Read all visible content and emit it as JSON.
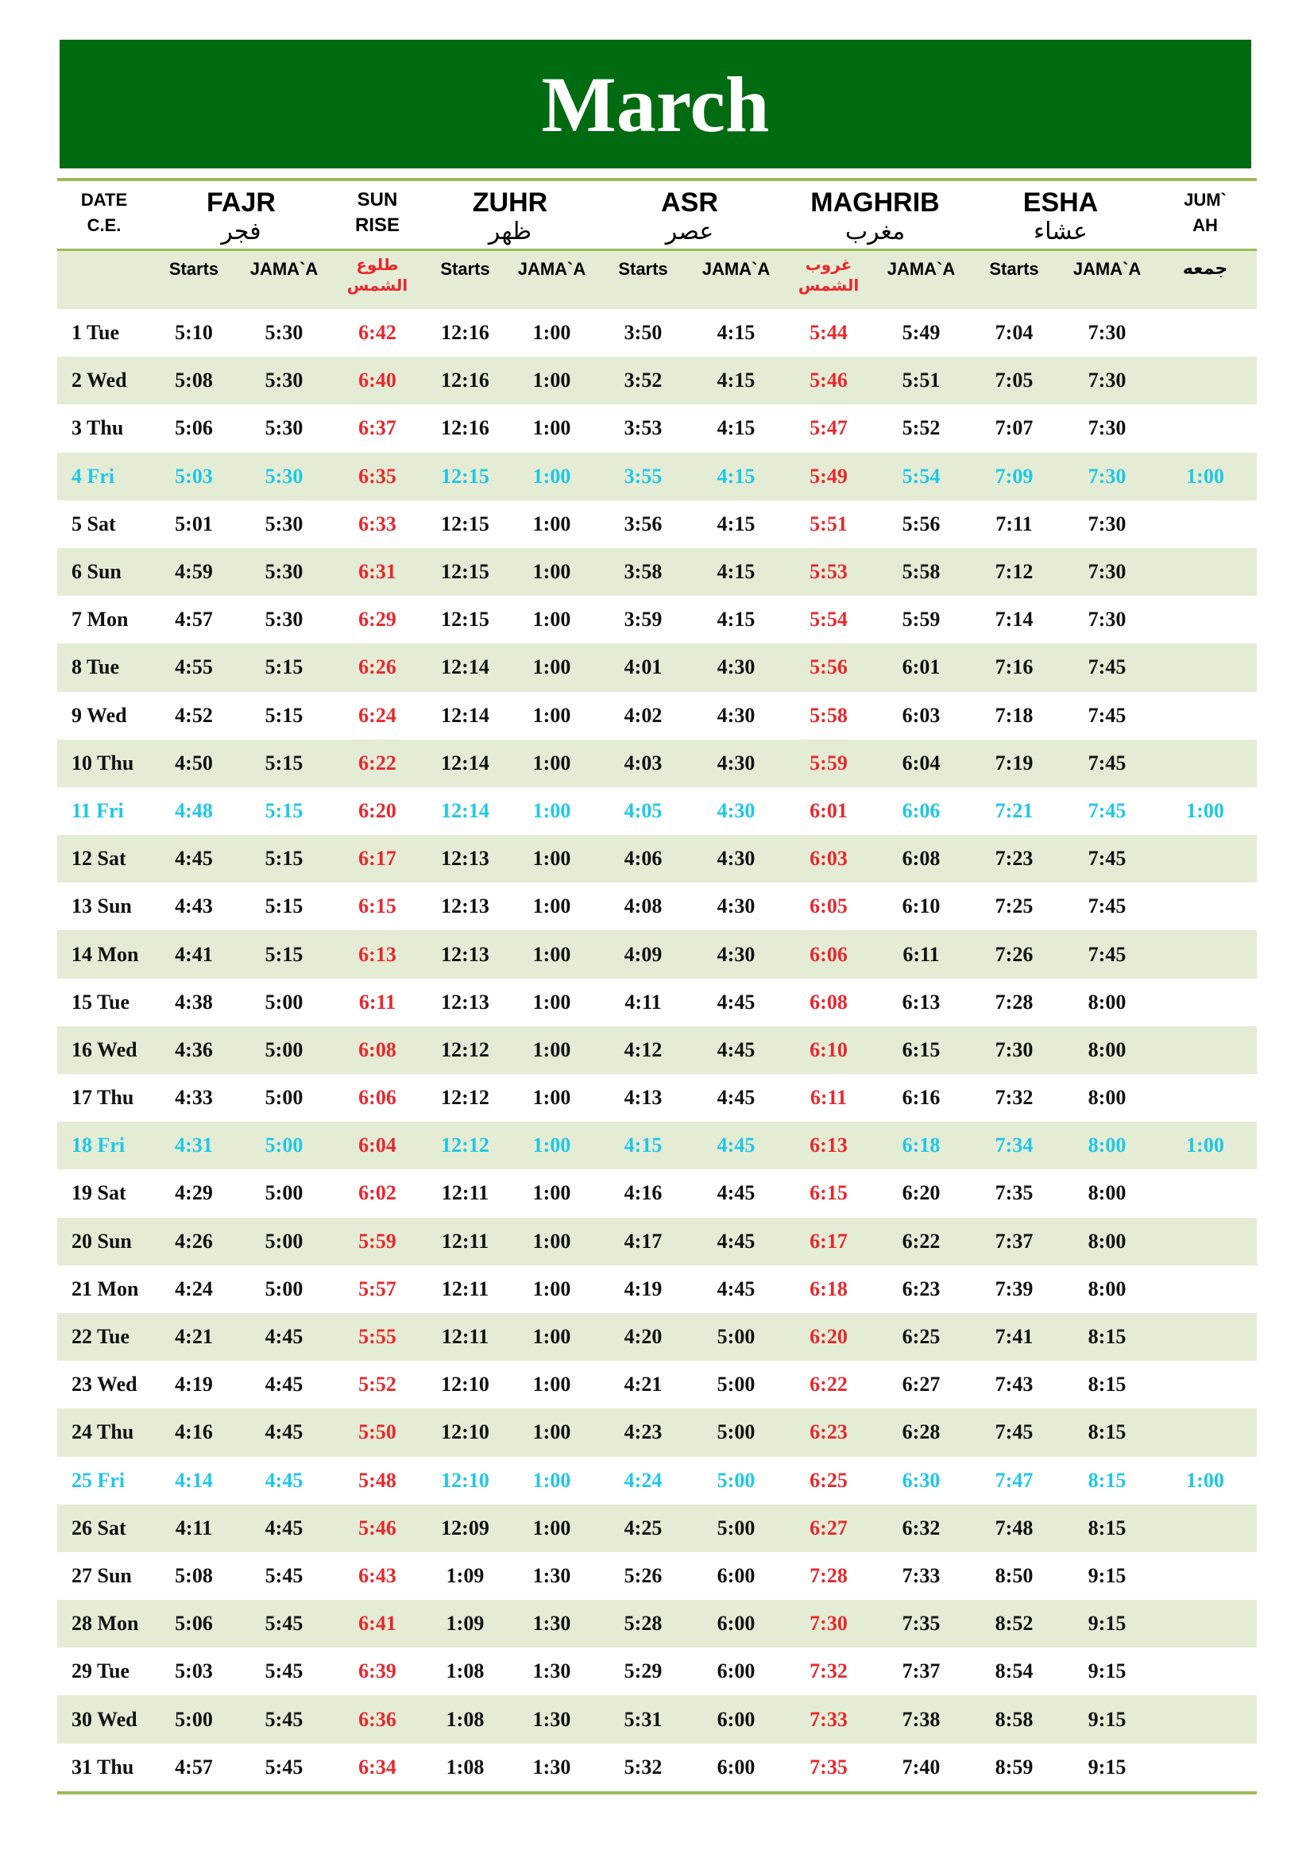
{
  "title": "March",
  "header": {
    "date": [
      "DATE",
      "C.E."
    ],
    "fajr": {
      "en": "FAJR",
      "ar": "فجر"
    },
    "sunrise": [
      "SUN",
      "RISE"
    ],
    "zuhr": {
      "en": "ZUHR",
      "ar": "ظهر"
    },
    "asr": {
      "en": "ASR",
      "ar": "عصر"
    },
    "maghrib": {
      "en": "MAGHRIB",
      "ar": "مغرب"
    },
    "esha": {
      "en": "ESHA",
      "ar": "عشاء"
    },
    "jumah": [
      "JUM`",
      "AH"
    ],
    "sub": {
      "starts": "Starts",
      "jamaa": "JAMA`A",
      "sunrise_ar": "طلوع الشمس",
      "sunset_ar": "غروب الشمس",
      "jumah_ar": "جمعه"
    }
  },
  "colors": {
    "title_bg": "#006b10",
    "sun_times": "#e8282d",
    "friday": "#1ec8e6",
    "alt_row": "#e5ecd5",
    "rule": "#9bbb59"
  },
  "rows": [
    [
      "1 Tue",
      "5:10",
      "5:30",
      "6:42",
      "12:16",
      "1:00",
      "3:50",
      "4:15",
      "5:44",
      "5:49",
      "7:04",
      "7:30",
      ""
    ],
    [
      "2 Wed",
      "5:08",
      "5:30",
      "6:40",
      "12:16",
      "1:00",
      "3:52",
      "4:15",
      "5:46",
      "5:51",
      "7:05",
      "7:30",
      ""
    ],
    [
      "3 Thu",
      "5:06",
      "5:30",
      "6:37",
      "12:16",
      "1:00",
      "3:53",
      "4:15",
      "5:47",
      "5:52",
      "7:07",
      "7:30",
      ""
    ],
    [
      "4 Fri",
      "5:03",
      "5:30",
      "6:35",
      "12:15",
      "1:00",
      "3:55",
      "4:15",
      "5:49",
      "5:54",
      "7:09",
      "7:30",
      "1:00"
    ],
    [
      "5 Sat",
      "5:01",
      "5:30",
      "6:33",
      "12:15",
      "1:00",
      "3:56",
      "4:15",
      "5:51",
      "5:56",
      "7:11",
      "7:30",
      ""
    ],
    [
      "6 Sun",
      "4:59",
      "5:30",
      "6:31",
      "12:15",
      "1:00",
      "3:58",
      "4:15",
      "5:53",
      "5:58",
      "7:12",
      "7:30",
      ""
    ],
    [
      "7 Mon",
      "4:57",
      "5:30",
      "6:29",
      "12:15",
      "1:00",
      "3:59",
      "4:15",
      "5:54",
      "5:59",
      "7:14",
      "7:30",
      ""
    ],
    [
      "8 Tue",
      "4:55",
      "5:15",
      "6:26",
      "12:14",
      "1:00",
      "4:01",
      "4:30",
      "5:56",
      "6:01",
      "7:16",
      "7:45",
      ""
    ],
    [
      "9 Wed",
      "4:52",
      "5:15",
      "6:24",
      "12:14",
      "1:00",
      "4:02",
      "4:30",
      "5:58",
      "6:03",
      "7:18",
      "7:45",
      ""
    ],
    [
      "10 Thu",
      "4:50",
      "5:15",
      "6:22",
      "12:14",
      "1:00",
      "4:03",
      "4:30",
      "5:59",
      "6:04",
      "7:19",
      "7:45",
      ""
    ],
    [
      "11 Fri",
      "4:48",
      "5:15",
      "6:20",
      "12:14",
      "1:00",
      "4:05",
      "4:30",
      "6:01",
      "6:06",
      "7:21",
      "7:45",
      "1:00"
    ],
    [
      "12 Sat",
      "4:45",
      "5:15",
      "6:17",
      "12:13",
      "1:00",
      "4:06",
      "4:30",
      "6:03",
      "6:08",
      "7:23",
      "7:45",
      ""
    ],
    [
      "13 Sun",
      "4:43",
      "5:15",
      "6:15",
      "12:13",
      "1:00",
      "4:08",
      "4:30",
      "6:05",
      "6:10",
      "7:25",
      "7:45",
      ""
    ],
    [
      "14 Mon",
      "4:41",
      "5:15",
      "6:13",
      "12:13",
      "1:00",
      "4:09",
      "4:30",
      "6:06",
      "6:11",
      "7:26",
      "7:45",
      ""
    ],
    [
      "15 Tue",
      "4:38",
      "5:00",
      "6:11",
      "12:13",
      "1:00",
      "4:11",
      "4:45",
      "6:08",
      "6:13",
      "7:28",
      "8:00",
      ""
    ],
    [
      "16 Wed",
      "4:36",
      "5:00",
      "6:08",
      "12:12",
      "1:00",
      "4:12",
      "4:45",
      "6:10",
      "6:15",
      "7:30",
      "8:00",
      ""
    ],
    [
      "17 Thu",
      "4:33",
      "5:00",
      "6:06",
      "12:12",
      "1:00",
      "4:13",
      "4:45",
      "6:11",
      "6:16",
      "7:32",
      "8:00",
      ""
    ],
    [
      "18 Fri",
      "4:31",
      "5:00",
      "6:04",
      "12:12",
      "1:00",
      "4:15",
      "4:45",
      "6:13",
      "6:18",
      "7:34",
      "8:00",
      "1:00"
    ],
    [
      "19 Sat",
      "4:29",
      "5:00",
      "6:02",
      "12:11",
      "1:00",
      "4:16",
      "4:45",
      "6:15",
      "6:20",
      "7:35",
      "8:00",
      ""
    ],
    [
      "20 Sun",
      "4:26",
      "5:00",
      "5:59",
      "12:11",
      "1:00",
      "4:17",
      "4:45",
      "6:17",
      "6:22",
      "7:37",
      "8:00",
      ""
    ],
    [
      "21 Mon",
      "4:24",
      "5:00",
      "5:57",
      "12:11",
      "1:00",
      "4:19",
      "4:45",
      "6:18",
      "6:23",
      "7:39",
      "8:00",
      ""
    ],
    [
      "22 Tue",
      "4:21",
      "4:45",
      "5:55",
      "12:11",
      "1:00",
      "4:20",
      "5:00",
      "6:20",
      "6:25",
      "7:41",
      "8:15",
      ""
    ],
    [
      "23 Wed",
      "4:19",
      "4:45",
      "5:52",
      "12:10",
      "1:00",
      "4:21",
      "5:00",
      "6:22",
      "6:27",
      "7:43",
      "8:15",
      ""
    ],
    [
      "24 Thu",
      "4:16",
      "4:45",
      "5:50",
      "12:10",
      "1:00",
      "4:23",
      "5:00",
      "6:23",
      "6:28",
      "7:45",
      "8:15",
      ""
    ],
    [
      "25 Fri",
      "4:14",
      "4:45",
      "5:48",
      "12:10",
      "1:00",
      "4:24",
      "5:00",
      "6:25",
      "6:30",
      "7:47",
      "8:15",
      "1:00"
    ],
    [
      "26 Sat",
      "4:11",
      "4:45",
      "5:46",
      "12:09",
      "1:00",
      "4:25",
      "5:00",
      "6:27",
      "6:32",
      "7:48",
      "8:15",
      ""
    ],
    [
      "27 Sun",
      "5:08",
      "5:45",
      "6:43",
      "1:09",
      "1:30",
      "5:26",
      "6:00",
      "7:28",
      "7:33",
      "8:50",
      "9:15",
      ""
    ],
    [
      "28 Mon",
      "5:06",
      "5:45",
      "6:41",
      "1:09",
      "1:30",
      "5:28",
      "6:00",
      "7:30",
      "7:35",
      "8:52",
      "9:15",
      ""
    ],
    [
      "29 Tue",
      "5:03",
      "5:45",
      "6:39",
      "1:08",
      "1:30",
      "5:29",
      "6:00",
      "7:32",
      "7:37",
      "8:54",
      "9:15",
      ""
    ],
    [
      "30 Wed",
      "5:00",
      "5:45",
      "6:36",
      "1:08",
      "1:30",
      "5:31",
      "6:00",
      "7:33",
      "7:38",
      "8:58",
      "9:15",
      ""
    ],
    [
      "31 Thu",
      "4:57",
      "5:45",
      "6:34",
      "1:08",
      "1:30",
      "5:32",
      "6:00",
      "7:35",
      "7:40",
      "8:59",
      "9:15",
      ""
    ]
  ]
}
